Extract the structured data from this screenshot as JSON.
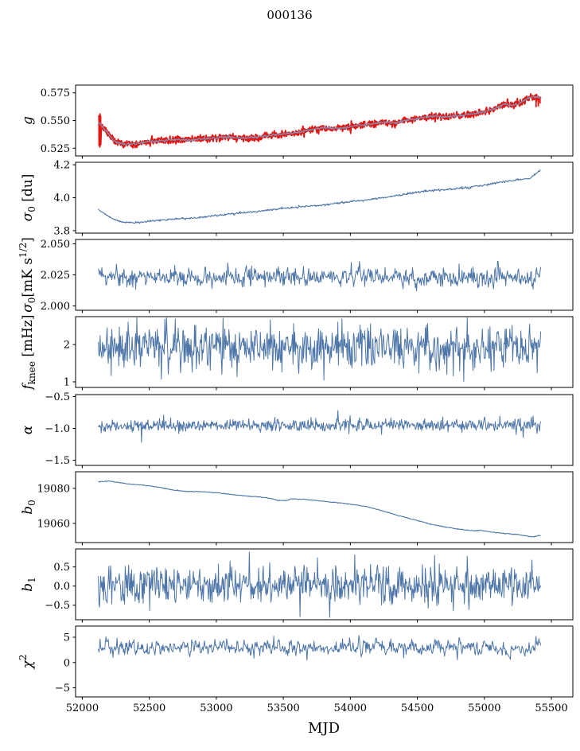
{
  "title": "000136",
  "xlabel": "MJD",
  "colors": {
    "blue": "#4e76a8",
    "red": "#e51411",
    "gray": "#8291b4",
    "axis": "#000000",
    "background": "#ffffff"
  },
  "chart_data": {
    "type": "line",
    "title": "000136",
    "xlabel": "MJD",
    "legend": "none",
    "grid": false,
    "x_axis": {
      "lim": [
        51950,
        55660
      ],
      "ticks": [
        52000,
        52500,
        53000,
        53500,
        54000,
        54500,
        55000,
        55500
      ],
      "tick_labels": [
        "52000",
        "52500",
        "53000",
        "53500",
        "54000",
        "54500",
        "55000",
        "55500"
      ]
    },
    "x_range": {
      "start": 52120,
      "end": 55420,
      "n_points": 760
    },
    "panels": [
      {
        "id": "g",
        "ylabel": [
          {
            "t": "g",
            "i": 1
          }
        ],
        "ylim": [
          0.518,
          0.582
        ],
        "yticks": [
          {
            "v": 0.575,
            "label": "0.575"
          },
          {
            "v": 0.55,
            "label": "0.550"
          },
          {
            "v": 0.525,
            "label": "0.525"
          }
        ],
        "anchors": [
          [
            52120,
            0.548
          ],
          [
            52160,
            0.5432
          ],
          [
            52240,
            0.5308
          ],
          [
            52320,
            0.5287
          ],
          [
            52400,
            0.5288
          ],
          [
            52500,
            0.531
          ],
          [
            52600,
            0.532
          ],
          [
            52700,
            0.5325
          ],
          [
            52800,
            0.5325
          ],
          [
            52900,
            0.5335
          ],
          [
            53000,
            0.5345
          ],
          [
            53100,
            0.5352
          ],
          [
            53200,
            0.534
          ],
          [
            53300,
            0.535
          ],
          [
            53400,
            0.5365
          ],
          [
            53500,
            0.5378
          ],
          [
            53600,
            0.539
          ],
          [
            53700,
            0.5415
          ],
          [
            53800,
            0.5438
          ],
          [
            53870,
            0.5428
          ],
          [
            53950,
            0.5432
          ],
          [
            54050,
            0.5455
          ],
          [
            54150,
            0.547
          ],
          [
            54250,
            0.5487
          ],
          [
            54330,
            0.5478
          ],
          [
            54420,
            0.5502
          ],
          [
            54520,
            0.5522
          ],
          [
            54620,
            0.5541
          ],
          [
            54700,
            0.5532
          ],
          [
            54800,
            0.5542
          ],
          [
            54900,
            0.5556
          ],
          [
            55000,
            0.5578
          ],
          [
            55080,
            0.5605
          ],
          [
            55150,
            0.5648
          ],
          [
            55210,
            0.5638
          ],
          [
            55260,
            0.5652
          ],
          [
            55310,
            0.569
          ],
          [
            55360,
            0.5713
          ],
          [
            55400,
            0.5708
          ],
          [
            55420,
            0.5703
          ]
        ],
        "series": [
          {
            "kind": "anchors",
            "color": "red",
            "width": 1.8,
            "noise": 0.0016,
            "seed": 7,
            "prespike": [
              52124,
              0.5245,
              0.556
            ],
            "endspikes": [
              [
                55386,
                0.5625
              ],
              [
                55402,
                0.5632
              ],
              [
                55415,
                0.5658
              ]
            ]
          },
          {
            "kind": "anchors",
            "color": "red",
            "width": 1.8,
            "noise": 0.0016,
            "seed": 17,
            "prespike": [
              52127,
              0.527,
              0.5555
            ]
          },
          {
            "kind": "anchors",
            "color": "gray",
            "width": 1.3,
            "noise": 0.0005,
            "seed": 27
          }
        ]
      },
      {
        "id": "sigma0-du",
        "ylabel": [
          {
            "t": "σ",
            "i": 1
          },
          {
            "t": "0",
            "sub": 1
          },
          {
            "t": " [du]"
          }
        ],
        "ylim": [
          3.785,
          4.215
        ],
        "yticks": [
          {
            "v": 4.2,
            "label": "4.2"
          },
          {
            "v": 4.0,
            "label": "4.0"
          },
          {
            "v": 3.8,
            "label": "3.8"
          }
        ],
        "anchors": [
          [
            52120,
            3.932
          ],
          [
            52170,
            3.9
          ],
          [
            52230,
            3.868
          ],
          [
            52300,
            3.852
          ],
          [
            52380,
            3.848
          ],
          [
            52460,
            3.853
          ],
          [
            52560,
            3.862
          ],
          [
            52660,
            3.868
          ],
          [
            52760,
            3.873
          ],
          [
            52860,
            3.878
          ],
          [
            52960,
            3.888
          ],
          [
            53060,
            3.898
          ],
          [
            53160,
            3.906
          ],
          [
            53260,
            3.912
          ],
          [
            53360,
            3.922
          ],
          [
            53460,
            3.932
          ],
          [
            53560,
            3.94
          ],
          [
            53660,
            3.948
          ],
          [
            53760,
            3.953
          ],
          [
            53860,
            3.962
          ],
          [
            53960,
            3.971
          ],
          [
            54060,
            3.982
          ],
          [
            54160,
            3.992
          ],
          [
            54260,
            4.002
          ],
          [
            54360,
            4.013
          ],
          [
            54460,
            4.03
          ],
          [
            54560,
            4.04
          ],
          [
            54660,
            4.047
          ],
          [
            54760,
            4.053
          ],
          [
            54860,
            4.061
          ],
          [
            54960,
            4.071
          ],
          [
            55060,
            4.086
          ],
          [
            55160,
            4.1
          ],
          [
            55240,
            4.108
          ],
          [
            55300,
            4.112
          ],
          [
            55340,
            4.118
          ],
          [
            55380,
            4.145
          ],
          [
            55420,
            4.168
          ]
        ],
        "series": [
          {
            "kind": "anchors",
            "color": "blue",
            "width": 1.1,
            "noise": 0.003,
            "seed": 5
          }
        ]
      },
      {
        "id": "sigma0-mK",
        "ylabel": [
          {
            "t": "σ",
            "i": 1
          },
          {
            "t": "0",
            "sub": 1
          },
          {
            "t": "[mK s"
          },
          {
            "t": "1/2",
            "sup": 1
          },
          {
            "t": "]"
          }
        ],
        "ylim": [
          1.9965,
          2.0535
        ],
        "yticks": [
          {
            "v": 2.05,
            "label": "2.050"
          },
          {
            "v": 2.025,
            "label": "2.025"
          },
          {
            "v": 2.0,
            "label": "2.000"
          }
        ],
        "series": [
          {
            "kind": "noise",
            "color": "blue",
            "width": 1.0,
            "mean": 2.023,
            "amp": 0.0035,
            "ar": 0.2,
            "spike_amp": 0.006,
            "spike_prob": 0.03,
            "seed": 23,
            "clamp": [
              2.01,
              2.036
            ]
          }
        ]
      },
      {
        "id": "fknee",
        "ylabel": [
          {
            "t": "f",
            "i": 1
          },
          {
            "t": "knee",
            "sub": 1
          },
          {
            "t": " [mHz]"
          }
        ],
        "ylim": [
          0.85,
          2.75
        ],
        "yticks": [
          {
            "v": 2,
            "label": "2"
          },
          {
            "v": 1,
            "label": "1"
          }
        ],
        "series": [
          {
            "kind": "noise",
            "color": "blue",
            "width": 1.0,
            "mean": 1.93,
            "amp": 0.3,
            "ar": 0.05,
            "spike_amp": 0.45,
            "spike_prob": 0.03,
            "seed": 31,
            "clamp": [
              1.0,
              2.72
            ]
          }
        ]
      },
      {
        "id": "alpha",
        "ylabel": [
          {
            "t": "α",
            "i": 1
          }
        ],
        "ylim": [
          -1.58,
          -0.47
        ],
        "yticks": [
          {
            "v": -0.5,
            "label": "−0.5"
          },
          {
            "v": -1.0,
            "label": "−1.0"
          },
          {
            "v": -1.5,
            "label": "−1.5"
          }
        ],
        "series": [
          {
            "kind": "noise",
            "color": "blue",
            "width": 1.0,
            "mean": -0.95,
            "amp": 0.05,
            "ar": 0.1,
            "spike_amp": 0.15,
            "spike_prob": 0.025,
            "seed": 41,
            "clamp": [
              -1.22,
              -0.72
            ]
          }
        ]
      },
      {
        "id": "b0",
        "ylabel": [
          {
            "t": "b",
            "i": 1
          },
          {
            "t": "0",
            "sub": 1
          }
        ],
        "ylim": [
          19049,
          19089.5
        ],
        "yticks": [
          {
            "v": 19080,
            "label": "19080"
          },
          {
            "v": 19060,
            "label": "19060"
          }
        ],
        "anchors": [
          [
            52120,
            19083.8
          ],
          [
            52200,
            19084.2
          ],
          [
            52280,
            19083.2
          ],
          [
            52360,
            19082.4
          ],
          [
            52440,
            19082.0
          ],
          [
            52520,
            19081.2
          ],
          [
            52600,
            19080.2
          ],
          [
            52680,
            19079.0
          ],
          [
            52760,
            19078.4
          ],
          [
            52900,
            19078.0
          ],
          [
            53000,
            19077.6
          ],
          [
            53100,
            19076.6
          ],
          [
            53200,
            19075.8
          ],
          [
            53300,
            19075.2
          ],
          [
            53380,
            19074.6
          ],
          [
            53460,
            19073.2
          ],
          [
            53520,
            19073.0
          ],
          [
            53560,
            19074.0
          ],
          [
            53650,
            19073.8
          ],
          [
            53750,
            19073.0
          ],
          [
            53850,
            19072.2
          ],
          [
            53950,
            19071.4
          ],
          [
            54050,
            19070.4
          ],
          [
            54120,
            19069.6
          ],
          [
            54200,
            19068.0
          ],
          [
            54280,
            19066.2
          ],
          [
            54360,
            19064.4
          ],
          [
            54440,
            19062.8
          ],
          [
            54520,
            19061.2
          ],
          [
            54600,
            19059.5
          ],
          [
            54700,
            19058.0
          ],
          [
            54800,
            19056.8
          ],
          [
            54900,
            19055.8
          ],
          [
            54970,
            19056.0
          ],
          [
            55050,
            19055.0
          ],
          [
            55150,
            19054.2
          ],
          [
            55250,
            19053.6
          ],
          [
            55320,
            19052.6
          ],
          [
            55370,
            19052.4
          ],
          [
            55400,
            19052.9
          ],
          [
            55420,
            19053.1
          ]
        ],
        "series": [
          {
            "kind": "anchors",
            "color": "blue",
            "width": 1.1,
            "noise": 0.12,
            "seed": 9
          }
        ]
      },
      {
        "id": "b1",
        "ylabel": [
          {
            "t": "b",
            "i": 1
          },
          {
            "t": "1",
            "sub": 1
          }
        ],
        "ylim": [
          -0.88,
          0.97
        ],
        "yticks": [
          {
            "v": 0.5,
            "label": "0.5"
          },
          {
            "v": 0.0,
            "label": "0.0"
          },
          {
            "v": -0.5,
            "label": "−0.5"
          }
        ],
        "series": [
          {
            "kind": "noise",
            "color": "blue",
            "width": 1.0,
            "mean": 0.02,
            "amp": 0.24,
            "ar": 0.1,
            "spike_amp": 0.5,
            "spike_prob": 0.02,
            "seed": 53,
            "clamp": [
              -0.82,
              0.92
            ]
          }
        ]
      },
      {
        "id": "chi2",
        "ylabel": [
          {
            "t": "χ",
            "i": 1
          },
          {
            "t": "2",
            "sup": 1
          }
        ],
        "ylim": [
          -6.8,
          7.2
        ],
        "yticks": [
          {
            "v": 5,
            "label": "5"
          },
          {
            "v": 0,
            "label": "0"
          },
          {
            "v": -5,
            "label": "−5"
          }
        ],
        "series": [
          {
            "kind": "noise",
            "color": "blue",
            "width": 1.0,
            "mean": 2.9,
            "amp": 0.7,
            "ar": 0.5,
            "spike_amp": 1.4,
            "spike_prob": 0.015,
            "seed": 61,
            "clamp": [
              0.45,
              5.9
            ]
          }
        ]
      }
    ]
  }
}
